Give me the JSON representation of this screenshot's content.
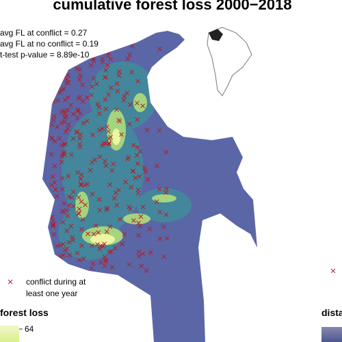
{
  "title": "cumulative forest loss 2000−2018",
  "annotations": [
    "avg FL at conflict = 0.27",
    "avg FL at no conflict = 0.19",
    "t-test p-value = 8.89e-10"
  ],
  "conflict_legend": {
    "lines": [
      "conflict during at",
      "least one year"
    ]
  },
  "colorbar": {
    "title": "forest loss",
    "tick": "64"
  },
  "right_legend": {
    "title": "dista"
  }
}
